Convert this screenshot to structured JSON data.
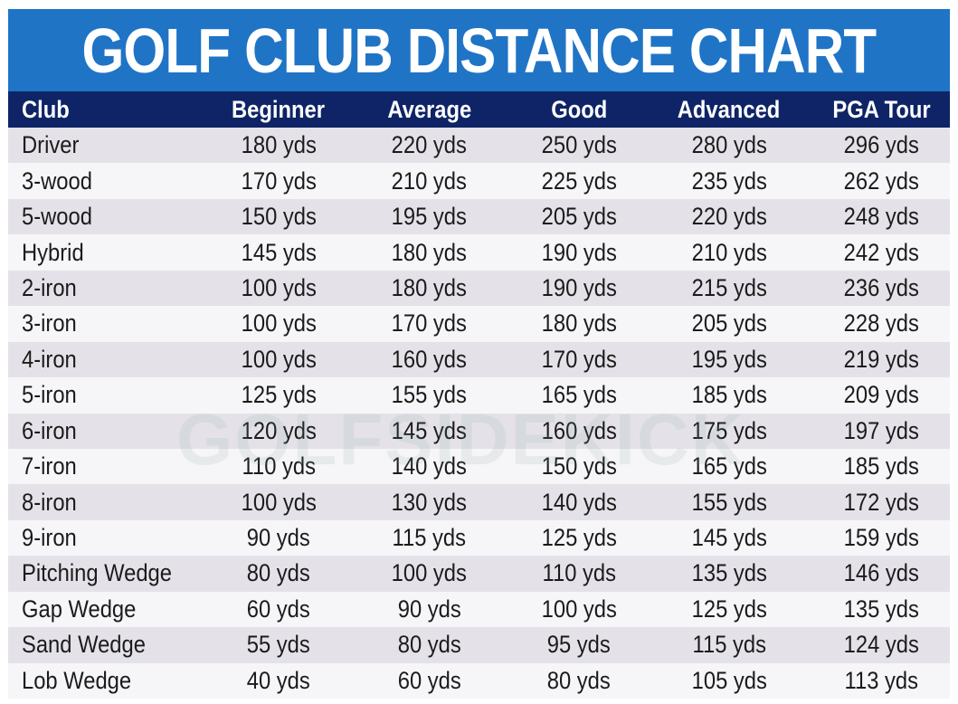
{
  "title": "GOLF CLUB DISTANCE CHART",
  "watermark": "GOLFSIDEKICK",
  "colors": {
    "title_bg": "#1f74c6",
    "header_bg": "#0e2466",
    "row_odd": "#e4e2e8",
    "row_even": "#f6f5f8"
  },
  "chart_data": {
    "type": "table",
    "title": "GOLF CLUB DISTANCE CHART",
    "columns": [
      "Club",
      "Beginner",
      "Average",
      "Good",
      "Advanced",
      "PGA Tour"
    ],
    "rows": [
      [
        "Driver",
        "180 yds",
        "220 yds",
        "250 yds",
        "280 yds",
        "296 yds"
      ],
      [
        "3-wood",
        "170 yds",
        "210 yds",
        "225 yds",
        "235 yds",
        "262 yds"
      ],
      [
        "5-wood",
        "150 yds",
        "195 yds",
        "205 yds",
        "220 yds",
        "248 yds"
      ],
      [
        "Hybrid",
        "145 yds",
        "180 yds",
        "190 yds",
        "210 yds",
        "242 yds"
      ],
      [
        "2-iron",
        "100 yds",
        "180 yds",
        "190 yds",
        "215 yds",
        "236 yds"
      ],
      [
        "3-iron",
        "100 yds",
        "170 yds",
        "180 yds",
        "205 yds",
        "228 yds"
      ],
      [
        "4-iron",
        "100 yds",
        "160 yds",
        "170 yds",
        "195 yds",
        "219 yds"
      ],
      [
        "5-iron",
        "125 yds",
        "155 yds",
        "165 yds",
        "185 yds",
        "209 yds"
      ],
      [
        "6-iron",
        "120 yds",
        "145 yds",
        "160 yds",
        "175 yds",
        "197 yds"
      ],
      [
        "7-iron",
        "110 yds",
        "140 yds",
        "150 yds",
        "165 yds",
        "185 yds"
      ],
      [
        "8-iron",
        "100 yds",
        "130 yds",
        "140 yds",
        "155 yds",
        "172 yds"
      ],
      [
        "9-iron",
        "90 yds",
        "115 yds",
        "125 yds",
        "145 yds",
        "159 yds"
      ],
      [
        "Pitching Wedge",
        "80 yds",
        "100 yds",
        "110 yds",
        "135 yds",
        "146 yds"
      ],
      [
        "Gap Wedge",
        "60 yds",
        "90 yds",
        "100 yds",
        "125 yds",
        "135 yds"
      ],
      [
        "Sand Wedge",
        "55 yds",
        "80 yds",
        "95 yds",
        "115 yds",
        "124 yds"
      ],
      [
        "Lob Wedge",
        "40 yds",
        "60 yds",
        "80 yds",
        "105 yds",
        "113 yds"
      ]
    ]
  }
}
